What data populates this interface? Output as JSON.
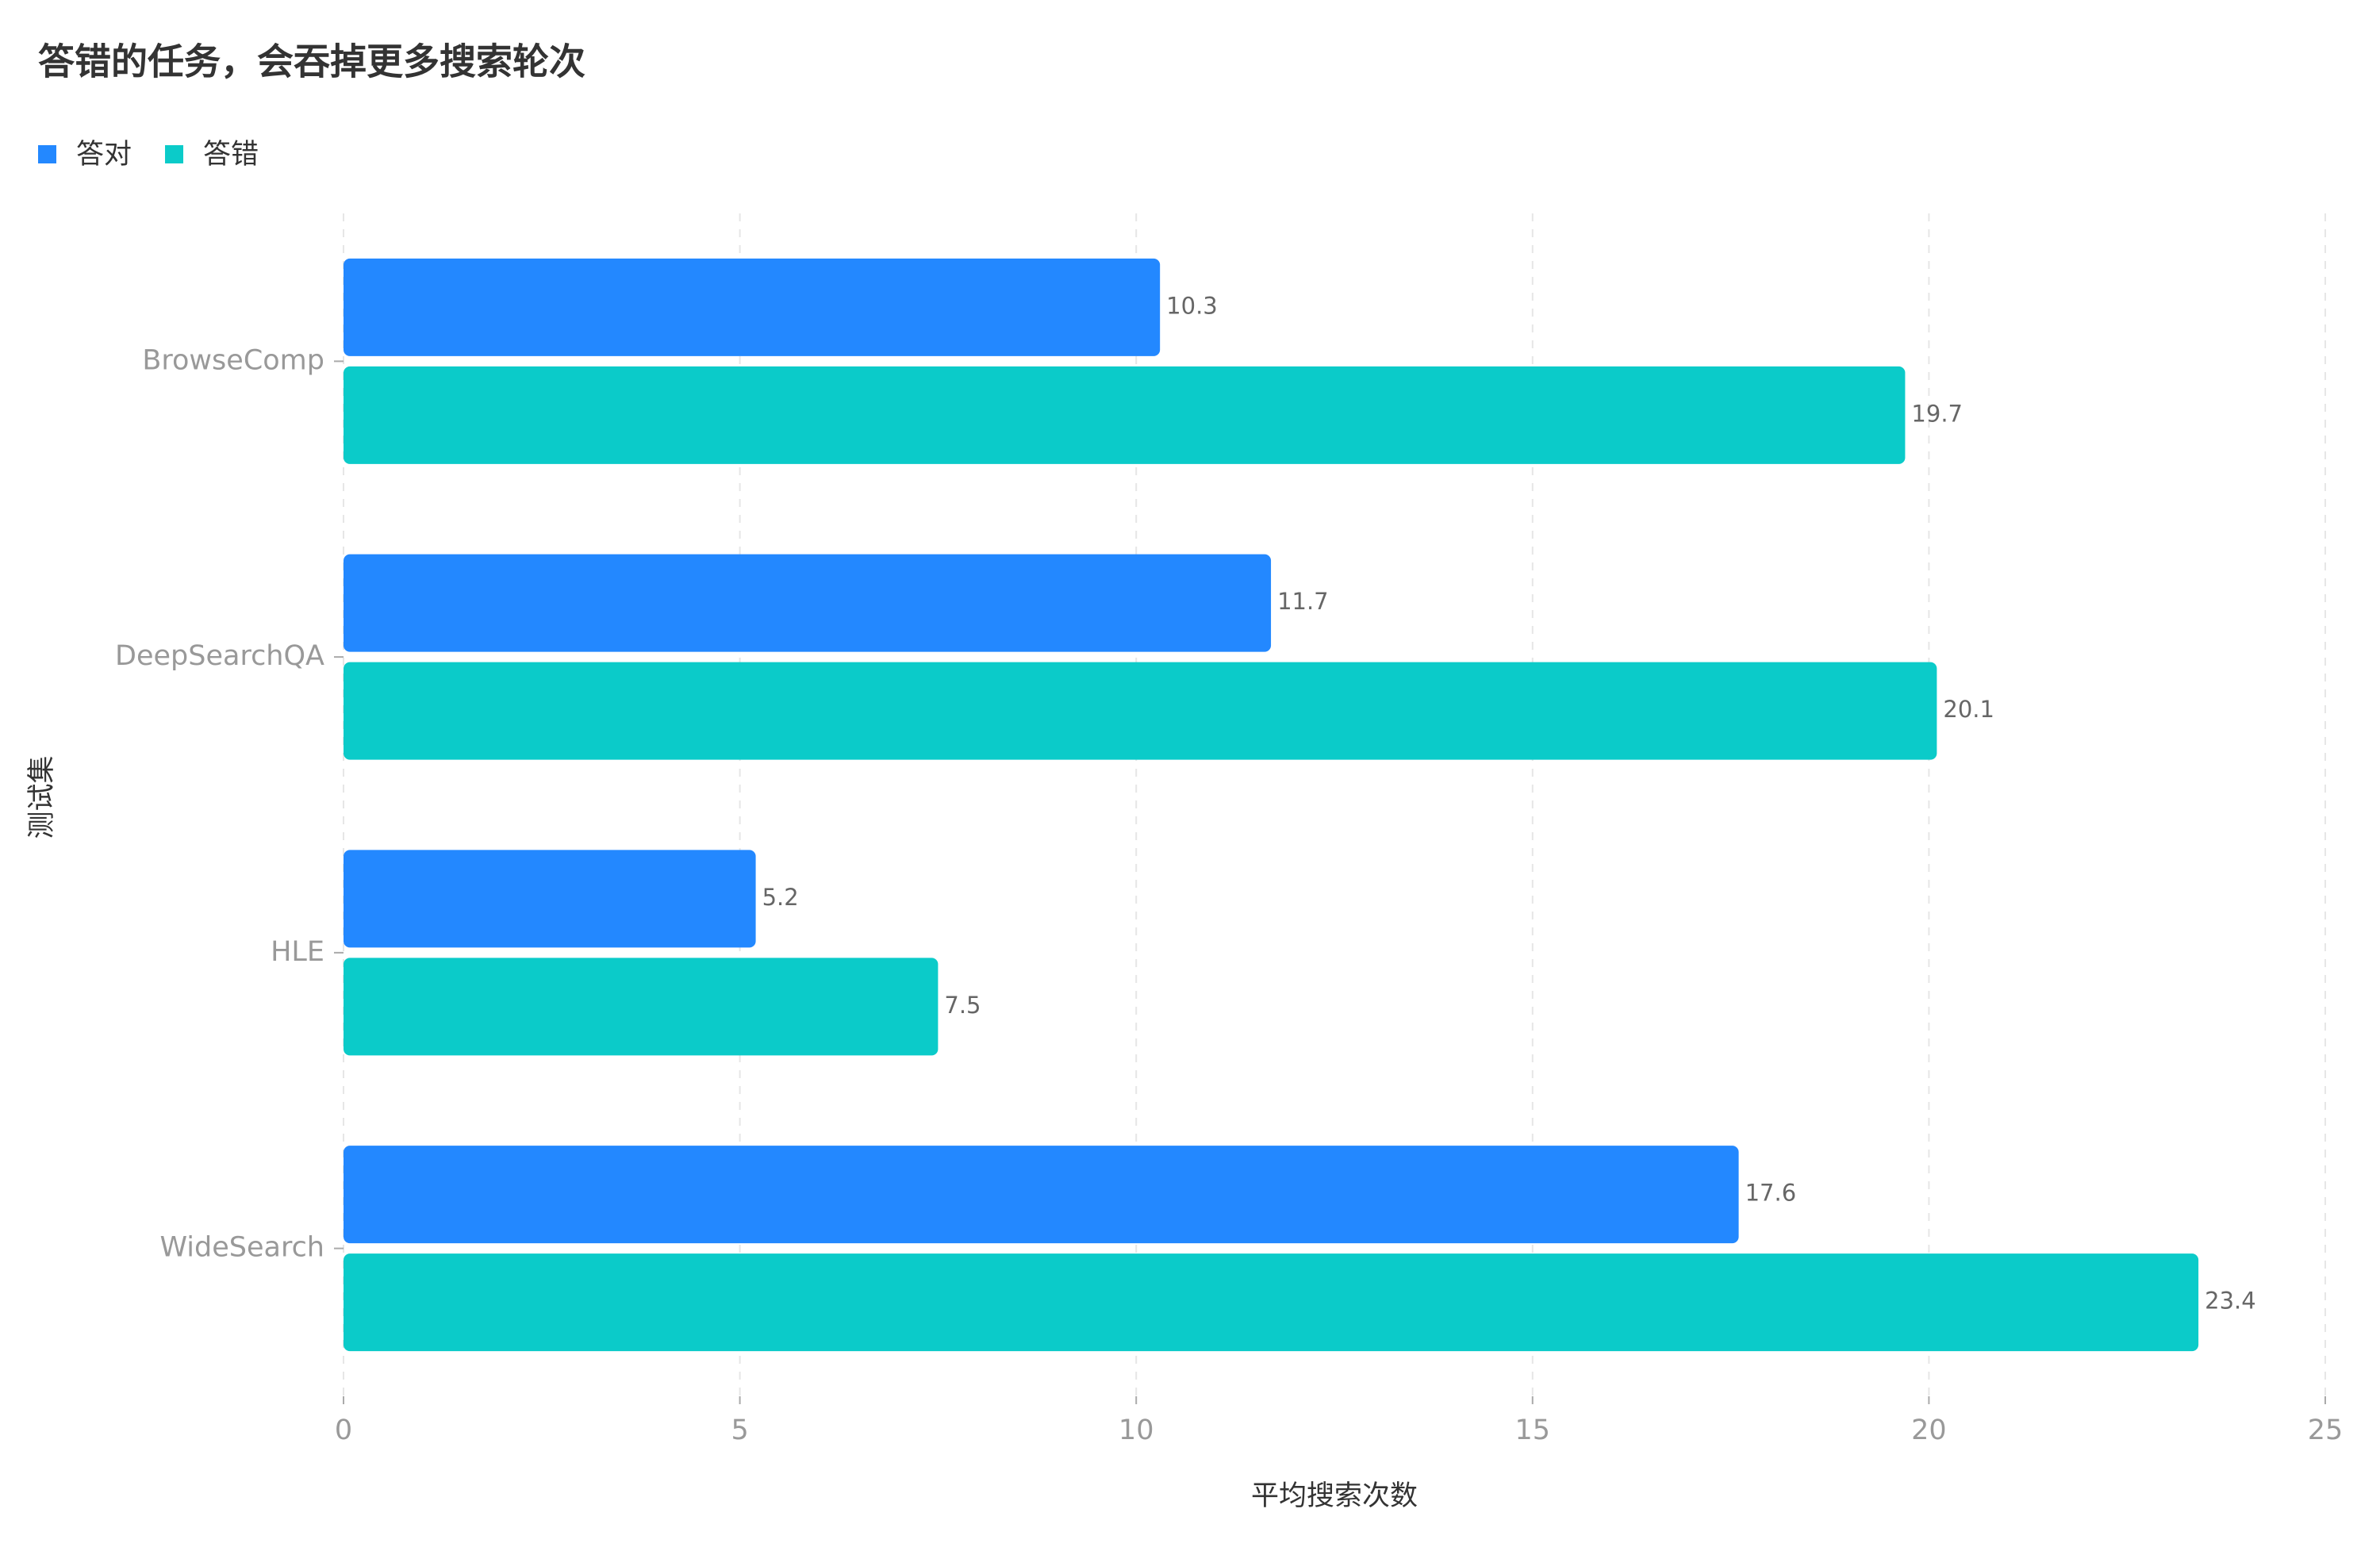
{
  "chart_data": {
    "type": "bar",
    "orientation": "horizontal",
    "title": "答错的任务，会吞掉更多搜索轮次",
    "x_label": "平均搜索次数",
    "y_label": "测试集",
    "categories": [
      "BrowseComp",
      "DeepSearchQA",
      "HLE",
      "WideSearch"
    ],
    "series": [
      {
        "name": "答对",
        "color": "#2388ff",
        "values": [
          10.3,
          11.7,
          5.2,
          17.6
        ]
      },
      {
        "name": "答错",
        "color": "#0bcbc9",
        "values": [
          19.7,
          20.1,
          7.5,
          23.4
        ]
      }
    ],
    "xlim": [
      0,
      25
    ],
    "xticks": [
      0,
      5,
      10,
      15,
      20,
      25
    ],
    "grid": true,
    "legend": "top-left"
  }
}
